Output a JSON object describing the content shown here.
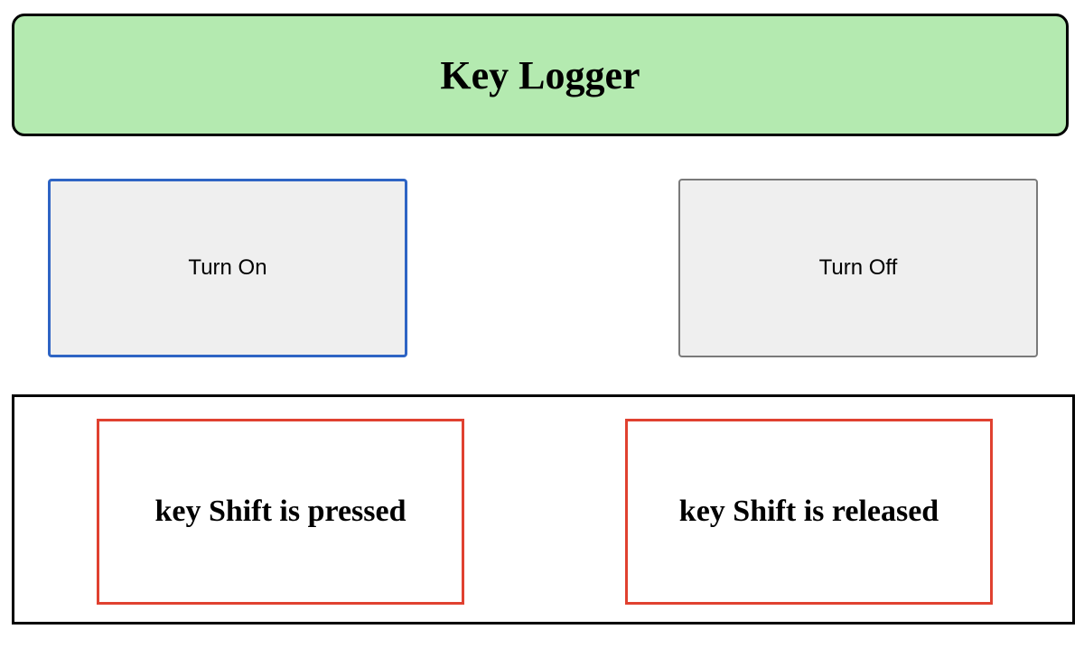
{
  "header": {
    "title": "Key Logger"
  },
  "controls": {
    "turn_on_label": "Turn On",
    "turn_off_label": "Turn Off"
  },
  "log": {
    "pressed_text": "key Shift is pressed",
    "released_text": "key Shift is released"
  },
  "colors": {
    "header_background": "#b4eab0",
    "focus_border": "#2e64c4",
    "log_box_border": "#e04130"
  }
}
